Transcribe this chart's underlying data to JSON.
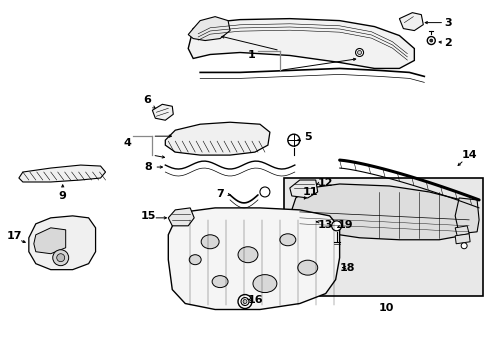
{
  "bg_color": "#ffffff",
  "lc": "#000000",
  "gc": "#888888",
  "figsize": [
    4.89,
    3.6
  ],
  "dpi": 100
}
